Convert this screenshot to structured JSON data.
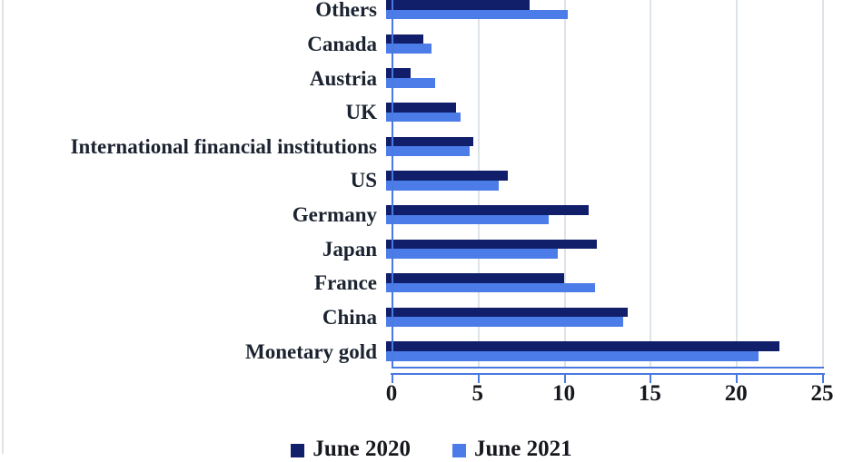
{
  "chart_data": {
    "type": "bar",
    "orientation": "horizontal",
    "title": "",
    "xlabel": "",
    "ylabel": "",
    "categories": [
      "Others",
      "Canada",
      "Austria",
      "UK",
      "International financial institutions",
      "US",
      "Germany",
      "Japan",
      "France",
      "China",
      "Monetary gold"
    ],
    "series": [
      {
        "name": "June 2020",
        "color": "#111f6b",
        "values": [
          8.4,
          2.2,
          1.5,
          4.1,
          5.1,
          7.1,
          11.8,
          12.3,
          10.4,
          14.1,
          22.9
        ]
      },
      {
        "name": "June 2021",
        "color": "#4b7ce8",
        "values": [
          10.6,
          2.7,
          2.9,
          4.4,
          4.9,
          6.6,
          9.5,
          10.0,
          12.2,
          13.8,
          21.7
        ]
      }
    ],
    "xlim": [
      0,
      25
    ],
    "x_ticks": [
      "0",
      "5",
      "10",
      "15",
      "20",
      "25"
    ],
    "grid": true,
    "legend_position": "bottom",
    "layout": {
      "axis_color": "#4a79e2",
      "gridline_color": "#dde4e9",
      "label_color": "#1b2330",
      "top_clipped": true,
      "legend_clipped": true
    }
  }
}
